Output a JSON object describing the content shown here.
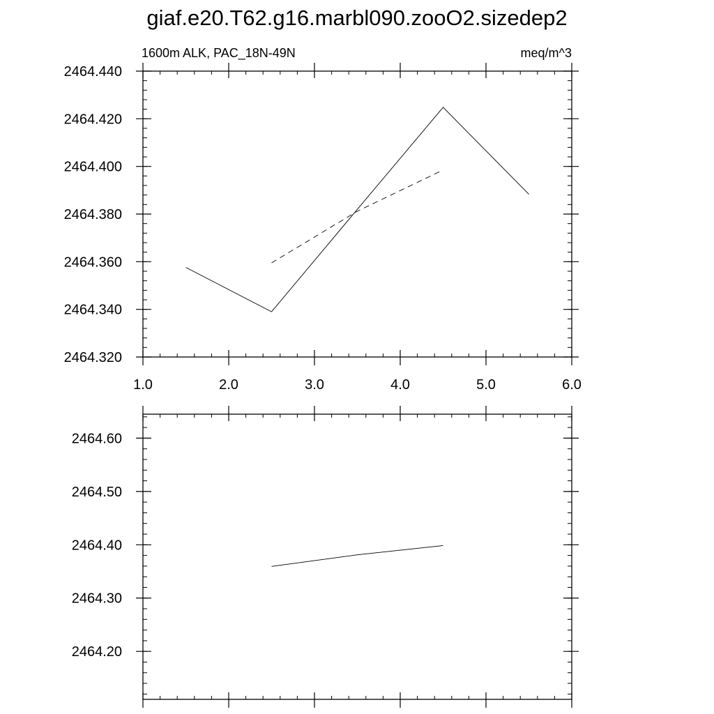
{
  "title": "giaf.e20.T62.g16.marbl090.zooO2.sizedep2",
  "chart_data": [
    {
      "type": "line",
      "left_label": "1600m ALK, PAC_18N-49N",
      "right_label": "meq/m^3",
      "xlim": [
        1.0,
        6.0
      ],
      "ylim": [
        2464.32,
        2464.44
      ],
      "x_ticks": [
        {
          "value": 1.0,
          "label": "1.0"
        },
        {
          "value": 2.0,
          "label": "2.0"
        },
        {
          "value": 3.0,
          "label": "3.0"
        },
        {
          "value": 4.0,
          "label": "4.0"
        },
        {
          "value": 5.0,
          "label": "5.0"
        },
        {
          "value": 6.0,
          "label": "6.0"
        }
      ],
      "x_minor_step": 0.2,
      "y_ticks": [
        {
          "value": 2464.32,
          "label": "2464.320"
        },
        {
          "value": 2464.34,
          "label": "2464.340"
        },
        {
          "value": 2464.36,
          "label": "2464.360"
        },
        {
          "value": 2464.38,
          "label": "2464.380"
        },
        {
          "value": 2464.4,
          "label": "2464.400"
        },
        {
          "value": 2464.42,
          "label": "2464.420"
        },
        {
          "value": 2464.44,
          "label": "2464.440"
        }
      ],
      "y_minor_step": 0.004,
      "series": [
        {
          "style": "solid",
          "x": [
            1.5,
            2.5,
            3.5,
            4.5,
            5.5
          ],
          "y": [
            2464.3576,
            2464.339,
            2464.382,
            2464.4248,
            2464.3883
          ]
        },
        {
          "style": "dashed",
          "x": [
            2.5,
            3.5,
            4.5
          ],
          "y": [
            2464.3595,
            2464.3812,
            2464.3985
          ]
        }
      ]
    },
    {
      "type": "line",
      "left_label": "",
      "right_label": "",
      "xlim": [
        1.0,
        6.0
      ],
      "ylim": [
        2464.11,
        2464.645
      ],
      "x_ticks": [
        {
          "value": 1.0,
          "label": ""
        },
        {
          "value": 2.0,
          "label": ""
        },
        {
          "value": 3.0,
          "label": ""
        },
        {
          "value": 4.0,
          "label": ""
        },
        {
          "value": 5.0,
          "label": ""
        },
        {
          "value": 6.0,
          "label": ""
        }
      ],
      "x_minor_step": 0.2,
      "y_ticks": [
        {
          "value": 2464.2,
          "label": "2464.20"
        },
        {
          "value": 2464.3,
          "label": "2464.30"
        },
        {
          "value": 2464.4,
          "label": "2464.40"
        },
        {
          "value": 2464.5,
          "label": "2464.50"
        },
        {
          "value": 2464.6,
          "label": "2464.60"
        }
      ],
      "y_minor_step": 0.02,
      "series": [
        {
          "style": "solid",
          "x": [
            2.5,
            3.5,
            4.5
          ],
          "y": [
            2464.3595,
            2464.3812,
            2464.3985
          ]
        }
      ]
    }
  ]
}
